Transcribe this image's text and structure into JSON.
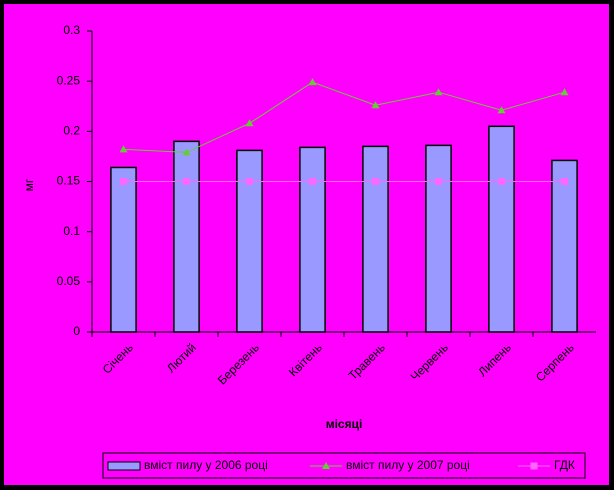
{
  "chart_data": {
    "type": "bar",
    "y_label": "мг",
    "x_label": "місяці",
    "categories": [
      "Січень",
      "Лютий",
      "Березень",
      "Квітень",
      "Травень",
      "Червень",
      "Липень",
      "Серпень"
    ],
    "series": [
      {
        "name": "вміст пилу у 2006 році",
        "type": "bar",
        "color": "#9999ff",
        "values": [
          0.164,
          0.19,
          0.181,
          0.184,
          0.185,
          0.186,
          0.205,
          0.171
        ]
      },
      {
        "name": "вміст пилу у 2007 році",
        "type": "line",
        "marker": "triangle",
        "color": "#66cc33",
        "values": [
          0.182,
          0.179,
          0.208,
          0.249,
          0.226,
          0.239,
          0.221,
          0.239
        ]
      },
      {
        "name": "ГДК",
        "type": "line",
        "marker": "square",
        "color": "#ff66ff",
        "values": [
          0.15,
          0.15,
          0.15,
          0.15,
          0.15,
          0.15,
          0.15,
          0.15
        ]
      }
    ],
    "ylim": [
      0,
      0.3
    ],
    "yticks": [
      0,
      0.05,
      0.1,
      0.15,
      0.2,
      0.25,
      0.3
    ],
    "grid": false,
    "legend": "bottom"
  }
}
